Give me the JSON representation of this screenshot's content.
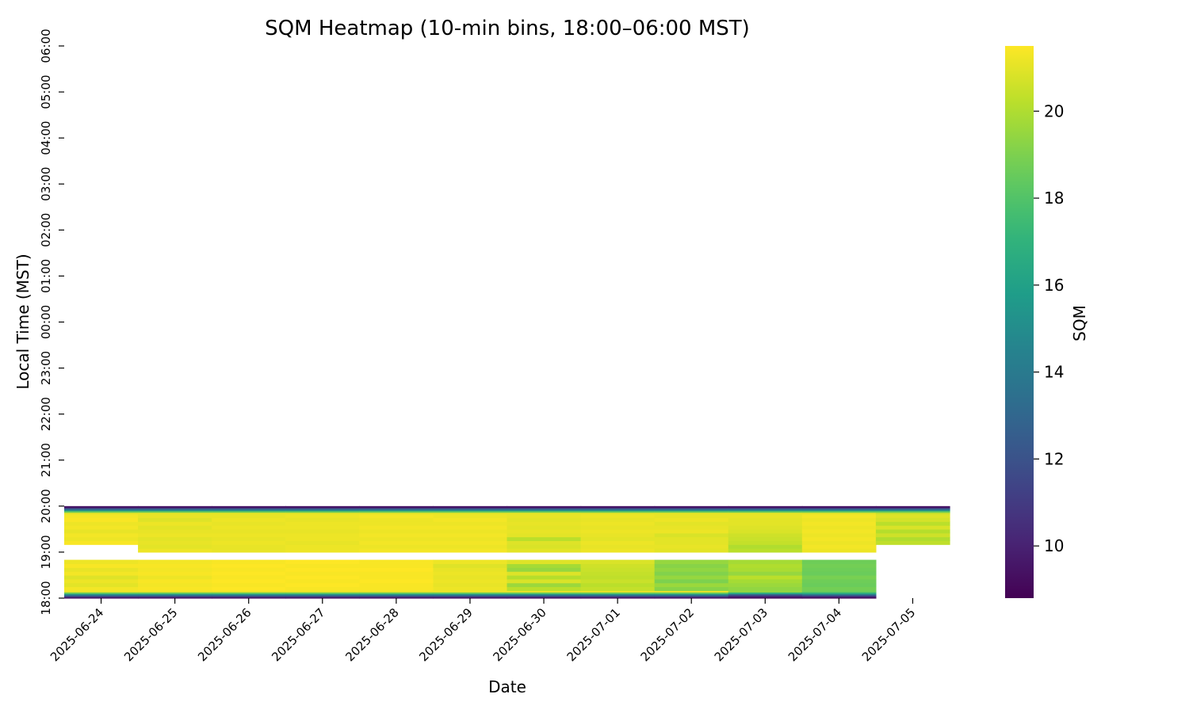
{
  "chart_data": {
    "type": "heatmap",
    "title": "SQM Heatmap (10-min bins, 18:00–06:00 MST)",
    "xlabel": "Date",
    "ylabel": "Local Time (MST)",
    "colorbar_label": "SQM",
    "colormap": "viridis",
    "colorbar_ticks": [
      10,
      12,
      14,
      16,
      18,
      20
    ],
    "value_range": [
      8.8,
      21.5
    ],
    "x_categories": [
      "2025-06-24",
      "2025-06-25",
      "2025-06-26",
      "2025-06-27",
      "2025-06-28",
      "2025-06-29",
      "2025-06-30",
      "2025-07-01",
      "2025-07-02",
      "2025-07-03",
      "2025-07-04",
      "2025-07-05"
    ],
    "y_ticks": [
      "18:00",
      "19:00",
      "20:00",
      "21:00",
      "22:00",
      "23:00",
      "00:00",
      "01:00",
      "02:00",
      "03:00",
      "04:00",
      "05:00",
      "06:00"
    ],
    "y_range": [
      "18:00",
      "06:00"
    ],
    "bin_minutes": 10,
    "columns": [
      {
        "date": "2025-06-24",
        "start": "18:00",
        "end": "18:50",
        "segments": [
          {
            "from": "18:00",
            "to": "18:10",
            "values": [
              9.5,
              12,
              15,
              18.5,
              21.2
            ]
          },
          {
            "from": "18:10",
            "to": "18:50",
            "values": [
              21.3,
              21.0,
              21.2,
              20.9,
              21.3,
              21.1,
              21.4,
              21.2
            ]
          }
        ]
      },
      {
        "date": "2025-06-24",
        "start": "19:10",
        "end": "20:00",
        "segments": [
          {
            "from": "19:10",
            "to": "19:50",
            "values": [
              21.4,
              21.2,
              21.3,
              21.1,
              21.3,
              21.2,
              21.4,
              21.3
            ]
          },
          {
            "from": "19:50",
            "to": "20:00",
            "values": [
              21.0,
              18.5,
              15,
              12,
              9.5
            ]
          }
        ]
      },
      {
        "date": "2025-06-25",
        "start": "18:00",
        "end": "18:50",
        "segments": [
          {
            "from": "18:00",
            "to": "18:10",
            "values": [
              9.5,
              12,
              15,
              18.5,
              21.2
            ]
          },
          {
            "from": "18:10",
            "to": "18:50",
            "values": [
              21.4,
              21.3,
              21.4,
              21.2,
              21.4,
              21.3,
              21.4,
              21.3
            ]
          }
        ]
      },
      {
        "date": "2025-06-25",
        "start": "19:00",
        "end": "20:00",
        "segments": [
          {
            "from": "19:00",
            "to": "19:50",
            "values": [
              21.2,
              21.0,
              21.1,
              21.0,
              21.2,
              21.1,
              21.0,
              21.2,
              20.9,
              21.1
            ]
          },
          {
            "from": "19:50",
            "to": "20:00",
            "values": [
              21.0,
              18.5,
              15,
              12,
              9.5
            ]
          }
        ]
      },
      {
        "date": "2025-06-26",
        "start": "18:00",
        "end": "18:50",
        "segments": [
          {
            "from": "18:00",
            "to": "18:10",
            "values": [
              9.5,
              12,
              15,
              18.5,
              21.2
            ]
          },
          {
            "from": "18:10",
            "to": "18:50",
            "values": [
              21.5,
              21.4,
              21.5,
              21.4,
              21.5,
              21.4,
              21.5,
              21.4
            ]
          }
        ]
      },
      {
        "date": "2025-06-26",
        "start": "19:00",
        "end": "20:00",
        "segments": [
          {
            "from": "19:00",
            "to": "19:50",
            "values": [
              21.1,
              21.1,
              21.2,
              21.1,
              21.2,
              21.1,
              21.2,
              21.1,
              21.2,
              21.1
            ]
          },
          {
            "from": "19:50",
            "to": "20:00",
            "values": [
              21.0,
              18.5,
              15,
              12,
              9.5
            ]
          }
        ]
      },
      {
        "date": "2025-06-27",
        "start": "18:00",
        "end": "18:50",
        "segments": [
          {
            "from": "18:00",
            "to": "18:10",
            "values": [
              9.5,
              12,
              15,
              18.5,
              21.2
            ]
          },
          {
            "from": "18:10",
            "to": "18:50",
            "values": [
              21.4,
              21.5,
              21.4,
              21.5,
              21.4,
              21.5,
              21.4,
              21.5
            ]
          }
        ]
      },
      {
        "date": "2025-06-27",
        "start": "19:00",
        "end": "20:00",
        "segments": [
          {
            "from": "19:00",
            "to": "19:50",
            "values": [
              21.2,
              21.2,
              21.1,
              21.2,
              21.2,
              21.1,
              21.2,
              21.2,
              21.1,
              21.2
            ]
          },
          {
            "from": "19:50",
            "to": "20:00",
            "values": [
              21.0,
              18.5,
              15,
              12,
              9.5
            ]
          }
        ]
      },
      {
        "date": "2025-06-28",
        "start": "18:00",
        "end": "18:50",
        "segments": [
          {
            "from": "18:00",
            "to": "18:10",
            "values": [
              9.5,
              12,
              15,
              18.5,
              21.2
            ]
          },
          {
            "from": "18:10",
            "to": "18:50",
            "values": [
              21.4,
              21.4,
              21.5,
              21.4,
              21.4,
              21.5,
              21.4,
              21.4
            ]
          }
        ]
      },
      {
        "date": "2025-06-28",
        "start": "19:00",
        "end": "20:00",
        "segments": [
          {
            "from": "19:00",
            "to": "19:50",
            "values": [
              21.3,
              21.2,
              21.3,
              21.2,
              21.3,
              21.2,
              21.3,
              21.2,
              21.2,
              21.3
            ]
          },
          {
            "from": "19:50",
            "to": "20:00",
            "values": [
              21.0,
              18.5,
              15,
              12,
              9.5
            ]
          }
        ]
      },
      {
        "date": "2025-06-29",
        "start": "18:00",
        "end": "18:50",
        "segments": [
          {
            "from": "18:00",
            "to": "18:10",
            "values": [
              9.5,
              12,
              15,
              18.5,
              21.2
            ]
          },
          {
            "from": "18:10",
            "to": "18:50",
            "values": [
              21.2,
              21.1,
              21.2,
              21.1,
              21.2,
              21.1,
              20.9,
              21.2
            ]
          }
        ]
      },
      {
        "date": "2025-06-29",
        "start": "19:00",
        "end": "20:00",
        "segments": [
          {
            "from": "19:00",
            "to": "19:50",
            "values": [
              21.3,
              21.2,
              21.3,
              21.2,
              21.3,
              21.2,
              21.3,
              21.2,
              21.3,
              21.2
            ]
          },
          {
            "from": "19:50",
            "to": "20:00",
            "values": [
              21.0,
              18.5,
              15,
              12,
              9.5
            ]
          }
        ]
      },
      {
        "date": "2025-06-30",
        "start": "18:00",
        "end": "18:50",
        "segments": [
          {
            "from": "18:00",
            "to": "18:10",
            "values": [
              9.5,
              12,
              15,
              18.5,
              21.2
            ]
          },
          {
            "from": "18:10",
            "to": "18:50",
            "values": [
              20.2,
              19.6,
              20.8,
              20.1,
              20.9,
              19.5,
              19.8,
              20.9
            ]
          }
        ]
      },
      {
        "date": "2025-06-30",
        "start": "19:00",
        "end": "20:00",
        "segments": [
          {
            "from": "19:00",
            "to": "19:50",
            "values": [
              21.0,
              20.8,
              20.9,
              20.2,
              21.0,
              21.1,
              21.0,
              21.1,
              21.0,
              21.1
            ]
          },
          {
            "from": "19:50",
            "to": "20:00",
            "values": [
              21.0,
              18.5,
              15,
              12,
              9.5
            ]
          }
        ]
      },
      {
        "date": "2025-07-01",
        "start": "18:00",
        "end": "18:50",
        "segments": [
          {
            "from": "18:00",
            "to": "18:10",
            "values": [
              9.5,
              12,
              15,
              18.5,
              21.2
            ]
          },
          {
            "from": "18:10",
            "to": "18:50",
            "values": [
              20.4,
              20.2,
              20.5,
              20.3,
              20.4,
              20.5,
              20.6,
              20.8
            ]
          }
        ]
      },
      {
        "date": "2025-07-01",
        "start": "19:00",
        "end": "20:00",
        "segments": [
          {
            "from": "19:00",
            "to": "19:50",
            "values": [
              21.2,
              21.1,
              21.2,
              21.0,
              21.1,
              21.2,
              21.1,
              21.2,
              21.1,
              21.2
            ]
          },
          {
            "from": "19:50",
            "to": "20:00",
            "values": [
              21.0,
              18.5,
              15,
              12,
              9.5
            ]
          }
        ]
      },
      {
        "date": "2025-07-02",
        "start": "18:00",
        "end": "18:50",
        "segments": [
          {
            "from": "18:00",
            "to": "18:10",
            "values": [
              9.5,
              12,
              15,
              18.5,
              21.2
            ]
          },
          {
            "from": "18:10",
            "to": "18:50",
            "values": [
              19.2,
              19.6,
              19.0,
              19.5,
              19.1,
              19.4,
              19.2,
              19.5
            ]
          }
        ]
      },
      {
        "date": "2025-07-02",
        "start": "19:00",
        "end": "20:00",
        "segments": [
          {
            "from": "19:00",
            "to": "19:50",
            "values": [
              21.0,
              21.1,
              21.0,
              21.0,
              20.8,
              21.2,
              21.1,
              21.0,
              21.2,
              21.1
            ]
          },
          {
            "from": "19:50",
            "to": "20:00",
            "values": [
              21.0,
              18.5,
              15,
              12,
              9.5
            ]
          }
        ]
      },
      {
        "date": "2025-07-03",
        "start": "18:00",
        "end": "18:50",
        "segments": [
          {
            "from": "18:00",
            "to": "18:10",
            "values": [
              9.2,
              10.5,
              13,
              17,
              19.5
            ]
          },
          {
            "from": "18:10",
            "to": "18:50",
            "values": [
              19.4,
              19.6,
              19.8,
              20.2,
              19.5,
              19.9,
              20.0,
              19.8
            ]
          }
        ]
      },
      {
        "date": "2025-07-03",
        "start": "19:00",
        "end": "20:00",
        "segments": [
          {
            "from": "19:00",
            "to": "19:50",
            "values": [
              20.2,
              20.0,
              20.4,
              20.5,
              20.6,
              20.8,
              20.9,
              21.0,
              21.0,
              21.1
            ]
          },
          {
            "from": "19:50",
            "to": "20:00",
            "values": [
              21.0,
              18.5,
              15,
              12,
              9.5
            ]
          }
        ]
      },
      {
        "date": "2025-07-04",
        "start": "18:00",
        "end": "18:50",
        "segments": [
          {
            "from": "18:00",
            "to": "18:10",
            "values": [
              9.2,
              11,
              14,
              17,
              18.6
            ]
          },
          {
            "from": "18:10",
            "to": "18:50",
            "values": [
              18.8,
              18.6,
              18.7,
              18.9,
              18.6,
              18.7,
              18.8,
              18.7
            ]
          }
        ]
      },
      {
        "date": "2025-07-04",
        "start": "19:00",
        "end": "20:00",
        "segments": [
          {
            "from": "19:00",
            "to": "19:50",
            "values": [
              21.2,
              21.3,
              21.2,
              21.3,
              21.2,
              21.3,
              21.2,
              21.3,
              21.2,
              21.3
            ]
          },
          {
            "from": "19:50",
            "to": "20:00",
            "values": [
              21.0,
              18.5,
              15,
              12,
              9.5
            ]
          }
        ]
      },
      {
        "date": "2025-07-05",
        "start": "19:10",
        "end": "20:00",
        "segments": [
          {
            "from": "19:10",
            "to": "19:50",
            "values": [
              20.3,
              20.0,
              20.6,
              20.1,
              20.8,
              20.2,
              20.7,
              20.9
            ]
          },
          {
            "from": "19:50",
            "to": "20:00",
            "values": [
              20.5,
              18.5,
              15,
              12,
              9.5
            ]
          }
        ]
      }
    ]
  }
}
